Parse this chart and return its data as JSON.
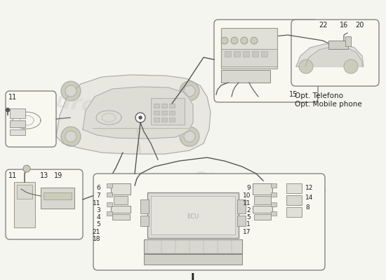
{
  "bg_color": "#f5f5f0",
  "watermark_text": "eurospares",
  "title_letter": "J",
  "opt_line1": "Opt. Telefono",
  "opt_line2": "Opt. Mobile phone",
  "fig_w": 5.5,
  "fig_h": 4.0,
  "dpi": 100
}
